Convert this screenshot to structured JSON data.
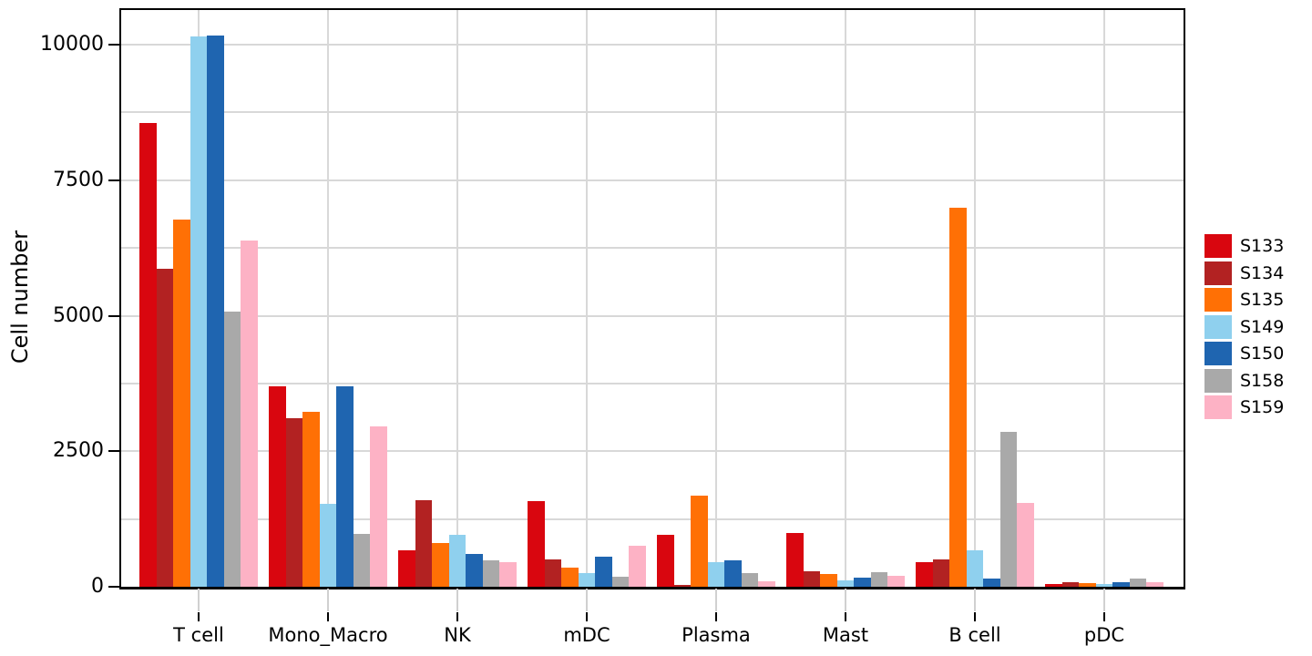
{
  "chart_data": {
    "type": "bar",
    "title": "",
    "xlabel": "",
    "ylabel": "Cell number",
    "categories": [
      "T cell",
      "Mono_Macro",
      "NK",
      "mDC",
      "Plasma",
      "Mast",
      "B cell",
      "pDC"
    ],
    "series": [
      {
        "name": "S133",
        "color": "#d9060f",
        "values": [
          8550,
          3700,
          670,
          1580,
          960,
          1000,
          450,
          55
        ]
      },
      {
        "name": "S134",
        "color": "#b22222",
        "values": [
          5860,
          3110,
          1600,
          510,
          35,
          290,
          500,
          80
        ]
      },
      {
        "name": "S135",
        "color": "#ff7005",
        "values": [
          6770,
          3230,
          800,
          350,
          1680,
          240,
          7000,
          70
        ]
      },
      {
        "name": "S149",
        "color": "#8fd0ee",
        "values": [
          10150,
          1530,
          960,
          250,
          460,
          120,
          680,
          45
        ]
      },
      {
        "name": "S150",
        "color": "#1f65b0",
        "values": [
          10170,
          3700,
          610,
          560,
          490,
          170,
          160,
          90
        ]
      },
      {
        "name": "S158",
        "color": "#a9a9a9",
        "values": [
          5070,
          970,
          480,
          190,
          260,
          270,
          2850,
          155
        ]
      },
      {
        "name": "S159",
        "color": "#fdb2c5",
        "values": [
          6390,
          2960,
          460,
          760,
          110,
          210,
          1540,
          85
        ]
      }
    ],
    "yticks": [
      0,
      2500,
      5000,
      7500,
      10000
    ],
    "ytick_labels": [
      "0",
      "2500",
      "5000",
      "7500",
      "10000"
    ],
    "minor_grid_step": 1250,
    "ylim": [
      0,
      10640
    ],
    "grid": true,
    "legend_position": "right"
  }
}
